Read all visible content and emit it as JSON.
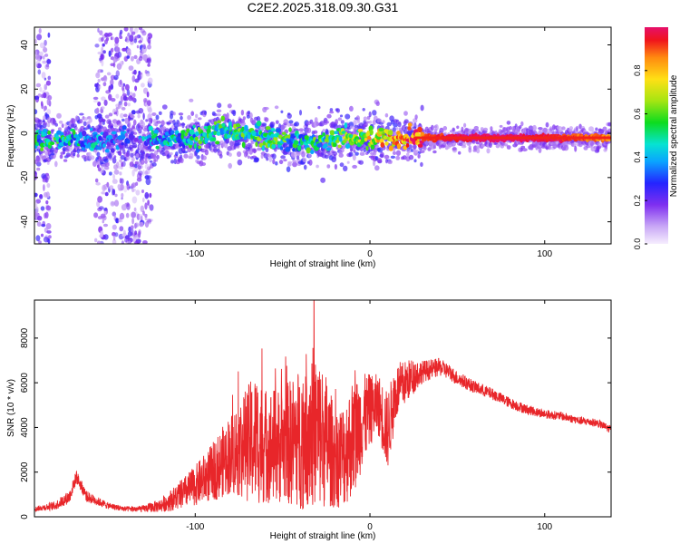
{
  "title": "C2E2.2025.318.09.30.G31",
  "chart_data": [
    {
      "type": "heatmap",
      "xlabel": "Height of straight line (km)",
      "ylabel": "Frequency (Hz)",
      "xlim": [
        -192,
        138
      ],
      "ylim": [
        -50,
        48
      ],
      "xticks": [
        -100,
        0,
        100
      ],
      "yticks": [
        -40,
        -20,
        0,
        20,
        40
      ],
      "grid": false,
      "colorbar": {
        "label": "Normalized spectral amplitude",
        "range": [
          0,
          1
        ],
        "ticks": [
          "0.0",
          "0.2",
          "0.4",
          "0.6",
          "0.8"
        ]
      },
      "tracks": [
        {
          "x": -190,
          "f": -2,
          "amp": 0.45
        },
        {
          "x": -175,
          "f": -3,
          "amp": 0.45
        },
        {
          "x": -160,
          "f": -3,
          "amp": 0.35
        },
        {
          "x": -140,
          "f": -2,
          "amp": 0.25
        },
        {
          "x": -120,
          "f": -3,
          "amp": 0.4
        },
        {
          "x": -100,
          "f": -2,
          "amp": 0.45
        },
        {
          "x": -85,
          "f": 1,
          "amp": 0.5
        },
        {
          "x": -70,
          "f": -1,
          "amp": 0.5
        },
        {
          "x": -55,
          "f": -2,
          "amp": 0.5
        },
        {
          "x": -40,
          "f": -4,
          "amp": 0.45
        },
        {
          "x": -25,
          "f": -3,
          "amp": 0.5
        },
        {
          "x": -10,
          "f": -2,
          "amp": 0.6
        },
        {
          "x": 5,
          "f": -2,
          "amp": 0.75
        },
        {
          "x": 20,
          "f": -2,
          "amp": 0.85
        },
        {
          "x": 40,
          "f": -2,
          "amp": 0.95
        },
        {
          "x": 60,
          "f": -2,
          "amp": 1.0
        },
        {
          "x": 80,
          "f": -2,
          "amp": 1.0
        },
        {
          "x": 100,
          "f": -2,
          "amp": 0.98
        },
        {
          "x": 120,
          "f": -2,
          "amp": 0.9
        },
        {
          "x": 138,
          "f": -2,
          "amp": 0.85
        }
      ],
      "noise_bands": [
        {
          "x_from": -192,
          "x_to": -183
        },
        {
          "x_from": -157,
          "x_to": -125
        }
      ]
    },
    {
      "type": "line",
      "xlabel": "Height of straight line (km)",
      "ylabel": "SNR (10 * v/v)",
      "xlim": [
        -192,
        138
      ],
      "ylim": [
        0,
        9700
      ],
      "xticks": [
        -100,
        0,
        100
      ],
      "yticks": [
        0,
        2000,
        4000,
        6000,
        8000
      ],
      "grid": false,
      "color": "#e8262a",
      "series": [
        {
          "x": [
            -192,
            -180,
            -172,
            -168,
            -162,
            -150,
            -140,
            -130,
            -120,
            -110,
            -100,
            -90,
            -80,
            -70,
            -65,
            -60,
            -50,
            -40,
            -35,
            -30,
            -25,
            -20,
            -15,
            -10,
            -5,
            0,
            5,
            10,
            15,
            20,
            25,
            30,
            35,
            40,
            45,
            50,
            60,
            70,
            80,
            90,
            100,
            110,
            120,
            130,
            138
          ],
          "y": [
            350,
            500,
            900,
            1800,
            900,
            500,
            350,
            350,
            500,
            900,
            1400,
            2000,
            2800,
            3300,
            3500,
            3200,
            3200,
            3500,
            4200,
            3800,
            3400,
            2600,
            2800,
            3500,
            4200,
            4800,
            5000,
            3800,
            5600,
            6000,
            6300,
            6500,
            6600,
            6700,
            6500,
            6200,
            5800,
            5500,
            5100,
            4800,
            4600,
            4500,
            4300,
            4200,
            3900
          ],
          "spread": [
            100,
            200,
            300,
            300,
            250,
            150,
            120,
            150,
            300,
            600,
            900,
            1300,
            1800,
            2600,
            3000,
            2600,
            2600,
            3200,
            3800,
            3500,
            3000,
            2200,
            2400,
            2600,
            2200,
            1600,
            1400,
            1800,
            1300,
            1000,
            800,
            500,
            450,
            400,
            350,
            320,
            280,
            260,
            240,
            220,
            200,
            190,
            180,
            180,
            180
          ]
        }
      ]
    }
  ]
}
